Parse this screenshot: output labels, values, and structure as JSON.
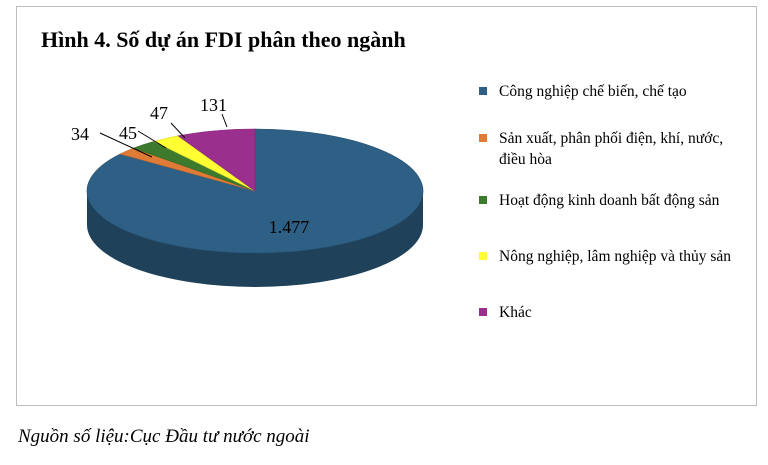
{
  "chart_data": {
    "type": "pie",
    "title": "Hình 4. Số dự án FDI phân theo ngành",
    "categories": [
      "Công nghiệp chế biến, chế tạo",
      "Sản xuất, phân phối điện, khí, nước, điều hòa",
      "Hoạt động kinh doanh bất động sản",
      "Nông nghiệp, lâm nghiệp và thủy sản",
      "Khác"
    ],
    "values": [
      1477,
      34,
      45,
      47,
      131
    ],
    "value_labels": [
      "1.477",
      "34",
      "45",
      "47",
      "131"
    ],
    "colors": [
      "#2E5F84",
      "#E07A37",
      "#3E7A2E",
      "#FFFF33",
      "#9B2F8E"
    ],
    "legend_position": "right",
    "style": "3d"
  },
  "source_note": "Nguồn số liệu:Cục Đầu tư nước ngoài"
}
